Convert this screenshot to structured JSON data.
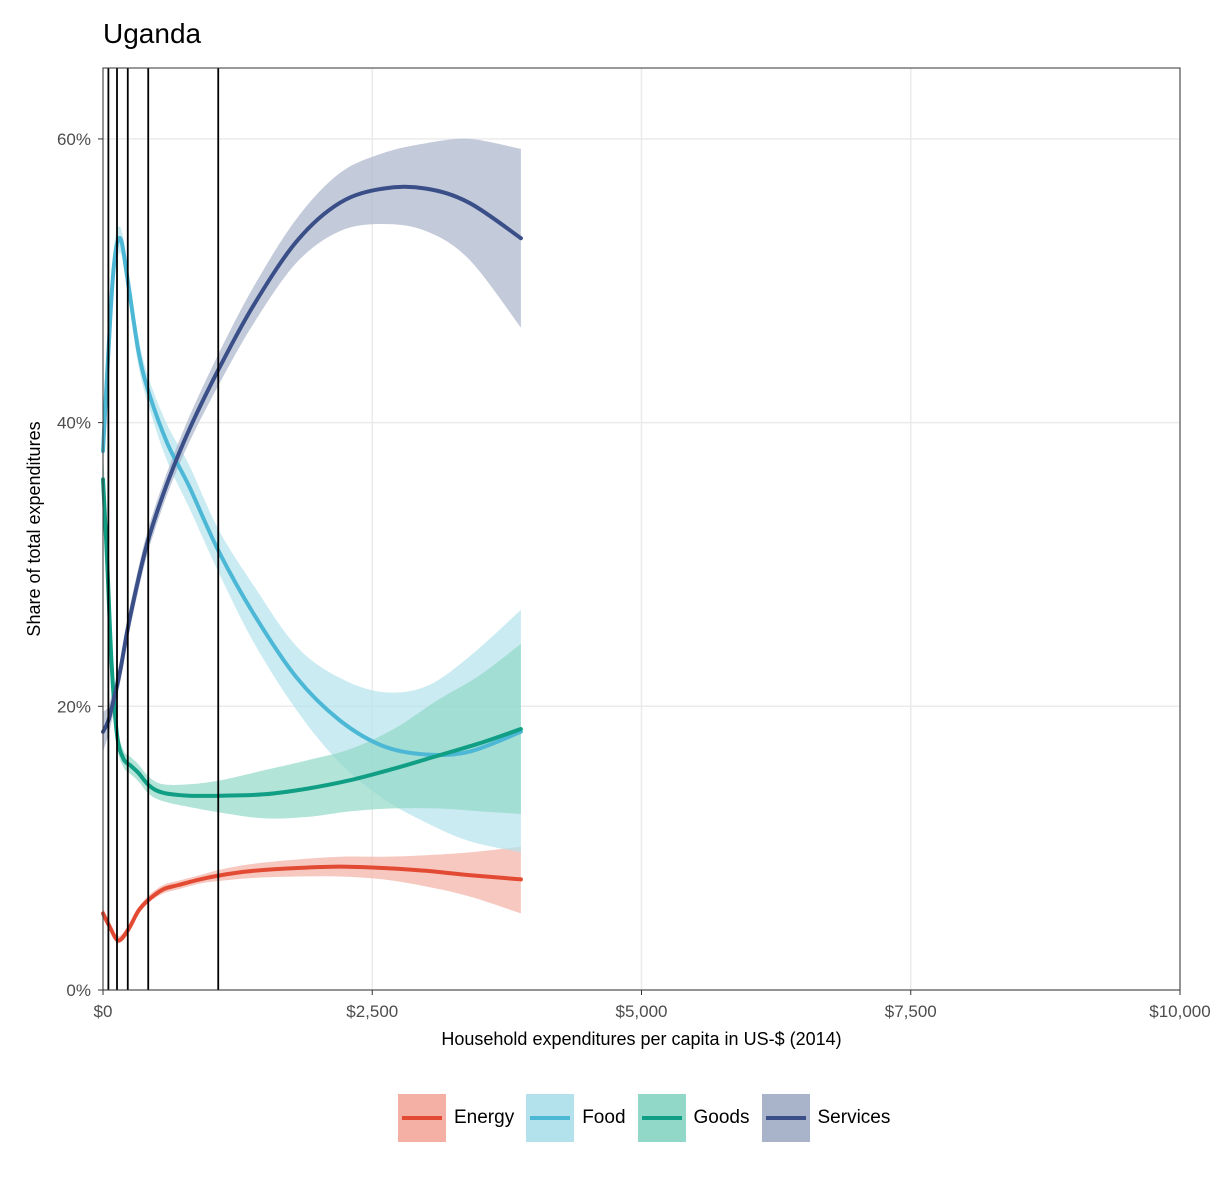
{
  "chart_data": {
    "type": "line",
    "title": "Uganda",
    "xlabel": "Household expenditures per capita in US-$ (2014)",
    "ylabel": "Share of total expenditures",
    "xlim": [
      0,
      10000
    ],
    "ylim": [
      0,
      0.65
    ],
    "x_ticks": [
      0,
      2500,
      5000,
      7500,
      10000
    ],
    "x_tick_labels": [
      "$0",
      "$2,500",
      "$5,000",
      "$7,500",
      "$10,000"
    ],
    "y_ticks": [
      0,
      0.2,
      0.4,
      0.6
    ],
    "y_tick_labels": [
      "0%",
      "20%",
      "40%",
      "60%"
    ],
    "grid": true,
    "legend_position": "bottom",
    "vertical_lines": [
      50,
      130,
      230,
      420,
      1070
    ],
    "series": [
      {
        "name": "Energy",
        "color": "#e34a33",
        "fill": "#f4b0a5",
        "points": [
          [
            0,
            0.054,
            0.051,
            0.058
          ],
          [
            60,
            0.045,
            0.042,
            0.048
          ],
          [
            140,
            0.035,
            0.033,
            0.038
          ],
          [
            230,
            0.042,
            0.04,
            0.045
          ],
          [
            330,
            0.056,
            0.053,
            0.058
          ],
          [
            430,
            0.064,
            0.062,
            0.067
          ],
          [
            560,
            0.071,
            0.068,
            0.074
          ],
          [
            700,
            0.074,
            0.071,
            0.077
          ],
          [
            900,
            0.078,
            0.075,
            0.081
          ],
          [
            1100,
            0.081,
            0.077,
            0.085
          ],
          [
            1400,
            0.084,
            0.079,
            0.089
          ],
          [
            1800,
            0.086,
            0.08,
            0.092
          ],
          [
            2200,
            0.087,
            0.08,
            0.094
          ],
          [
            2600,
            0.086,
            0.078,
            0.094
          ],
          [
            3000,
            0.084,
            0.073,
            0.095
          ],
          [
            3400,
            0.081,
            0.066,
            0.097
          ],
          [
            3880,
            0.078,
            0.054,
            0.101
          ]
        ]
      },
      {
        "name": "Food",
        "color": "#4db8d6",
        "fill": "#b3e2ec",
        "points": [
          [
            0,
            0.38,
            0.37,
            0.41
          ],
          [
            50,
            0.45,
            0.43,
            0.47
          ],
          [
            100,
            0.51,
            0.495,
            0.523
          ],
          [
            160,
            0.53,
            0.52,
            0.538
          ],
          [
            230,
            0.5,
            0.49,
            0.51
          ],
          [
            330,
            0.45,
            0.44,
            0.46
          ],
          [
            430,
            0.42,
            0.41,
            0.43
          ],
          [
            600,
            0.385,
            0.372,
            0.398
          ],
          [
            800,
            0.355,
            0.34,
            0.37
          ],
          [
            1070,
            0.31,
            0.295,
            0.325
          ],
          [
            1400,
            0.265,
            0.245,
            0.285
          ],
          [
            1800,
            0.22,
            0.197,
            0.242
          ],
          [
            2200,
            0.19,
            0.16,
            0.22
          ],
          [
            2600,
            0.172,
            0.135,
            0.21
          ],
          [
            3000,
            0.166,
            0.118,
            0.214
          ],
          [
            3400,
            0.168,
            0.105,
            0.235
          ],
          [
            3880,
            0.182,
            0.097,
            0.268
          ]
        ]
      },
      {
        "name": "Goods",
        "color": "#109e84",
        "fill": "#92d8c8",
        "points": [
          [
            0,
            0.36,
            0.34,
            0.38
          ],
          [
            40,
            0.3,
            0.28,
            0.32
          ],
          [
            80,
            0.23,
            0.215,
            0.245
          ],
          [
            130,
            0.18,
            0.172,
            0.188
          ],
          [
            190,
            0.163,
            0.157,
            0.169
          ],
          [
            260,
            0.158,
            0.152,
            0.164
          ],
          [
            330,
            0.153,
            0.147,
            0.159
          ],
          [
            430,
            0.144,
            0.138,
            0.15
          ],
          [
            560,
            0.139,
            0.133,
            0.145
          ],
          [
            800,
            0.137,
            0.129,
            0.145
          ],
          [
            1100,
            0.137,
            0.125,
            0.148
          ],
          [
            1500,
            0.138,
            0.121,
            0.155
          ],
          [
            1900,
            0.142,
            0.122,
            0.162
          ],
          [
            2300,
            0.148,
            0.126,
            0.17
          ],
          [
            2700,
            0.156,
            0.128,
            0.184
          ],
          [
            3100,
            0.165,
            0.128,
            0.204
          ],
          [
            3500,
            0.174,
            0.126,
            0.222
          ],
          [
            3880,
            0.184,
            0.124,
            0.244
          ]
        ]
      },
      {
        "name": "Services",
        "color": "#3a4e88",
        "fill": "#a9b4ca",
        "points": [
          [
            0,
            0.182,
            0.168,
            0.196
          ],
          [
            50,
            0.19,
            0.18,
            0.2
          ],
          [
            100,
            0.205,
            0.196,
            0.214
          ],
          [
            160,
            0.225,
            0.217,
            0.233
          ],
          [
            230,
            0.255,
            0.247,
            0.263
          ],
          [
            330,
            0.29,
            0.282,
            0.298
          ],
          [
            430,
            0.32,
            0.312,
            0.328
          ],
          [
            600,
            0.358,
            0.35,
            0.366
          ],
          [
            800,
            0.395,
            0.386,
            0.404
          ],
          [
            1070,
            0.437,
            0.426,
            0.448
          ],
          [
            1400,
            0.483,
            0.47,
            0.496
          ],
          [
            1800,
            0.528,
            0.513,
            0.544
          ],
          [
            2200,
            0.555,
            0.535,
            0.576
          ],
          [
            2600,
            0.565,
            0.54,
            0.59
          ],
          [
            3000,
            0.565,
            0.535,
            0.597
          ],
          [
            3400,
            0.555,
            0.515,
            0.6
          ],
          [
            3880,
            0.53,
            0.467,
            0.593
          ]
        ]
      }
    ]
  }
}
